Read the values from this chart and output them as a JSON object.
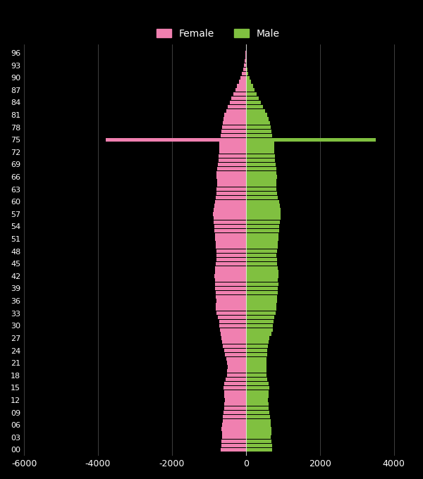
{
  "ages": [
    0,
    1,
    2,
    3,
    4,
    5,
    6,
    7,
    8,
    9,
    10,
    11,
    12,
    13,
    14,
    15,
    16,
    17,
    18,
    19,
    20,
    21,
    22,
    23,
    24,
    25,
    26,
    27,
    28,
    29,
    30,
    31,
    32,
    33,
    34,
    35,
    36,
    37,
    38,
    39,
    40,
    41,
    42,
    43,
    44,
    45,
    46,
    47,
    48,
    49,
    50,
    51,
    52,
    53,
    54,
    55,
    56,
    57,
    58,
    59,
    60,
    61,
    62,
    63,
    64,
    65,
    66,
    67,
    68,
    69,
    70,
    71,
    72,
    73,
    74,
    75,
    76,
    77,
    78,
    79,
    80,
    81,
    82,
    83,
    84,
    85,
    86,
    87,
    88,
    89,
    90,
    91,
    92,
    93,
    94,
    95,
    96
  ],
  "female": [
    680,
    670,
    660,
    640,
    650,
    660,
    640,
    630,
    620,
    600,
    590,
    580,
    570,
    580,
    590,
    610,
    580,
    550,
    520,
    510,
    500,
    520,
    540,
    570,
    580,
    620,
    640,
    660,
    680,
    710,
    720,
    730,
    760,
    800,
    810,
    820,
    800,
    810,
    820,
    830,
    840,
    830,
    850,
    840,
    830,
    810,
    800,
    790,
    800,
    810,
    820,
    830,
    840,
    850,
    860,
    870,
    880,
    900,
    880,
    860,
    840,
    820,
    800,
    790,
    780,
    780,
    800,
    790,
    780,
    760,
    750,
    740,
    730,
    720,
    720,
    3800,
    680,
    660,
    650,
    630,
    600,
    580,
    540,
    490,
    440,
    390,
    340,
    290,
    240,
    190,
    150,
    110,
    80,
    60,
    40,
    25,
    15
  ],
  "male": [
    710,
    700,
    690,
    670,
    680,
    690,
    670,
    660,
    650,
    630,
    620,
    610,
    600,
    610,
    620,
    640,
    610,
    580,
    560,
    560,
    560,
    560,
    560,
    570,
    580,
    600,
    620,
    640,
    680,
    720,
    730,
    740,
    760,
    810,
    820,
    830,
    840,
    840,
    850,
    860,
    870,
    860,
    880,
    870,
    860,
    840,
    840,
    830,
    840,
    850,
    860,
    870,
    880,
    890,
    900,
    910,
    930,
    940,
    940,
    920,
    890,
    860,
    840,
    830,
    820,
    820,
    840,
    830,
    820,
    800,
    790,
    780,
    770,
    760,
    760,
    3500,
    700,
    680,
    670,
    650,
    610,
    570,
    520,
    460,
    400,
    340,
    290,
    240,
    190,
    140,
    100,
    65,
    45,
    30,
    18,
    10,
    5
  ],
  "female_color": "#f080b0",
  "male_color": "#80c040",
  "background_color": "#000000",
  "text_color": "#ffffff",
  "grid_color": "#ffffff",
  "xlim": [
    -6000,
    4500
  ],
  "xticks": [
    -6000,
    -4000,
    -2000,
    0,
    2000,
    4000
  ],
  "xtick_labels": [
    "-6000",
    "-4000",
    "-2000",
    "0",
    "2000",
    "4000"
  ],
  "ytick_positions": [
    0,
    3,
    6,
    9,
    12,
    15,
    18,
    21,
    24,
    27,
    30,
    33,
    36,
    39,
    42,
    45,
    48,
    51,
    54,
    57,
    60,
    63,
    66,
    69,
    72,
    75,
    78,
    81,
    84,
    87,
    90,
    93,
    96
  ],
  "ytick_labels": [
    "00",
    "03",
    "06",
    "09",
    "12",
    "15",
    "18",
    "21",
    "24",
    "27",
    "30",
    "33",
    "36",
    "39",
    "42",
    "45",
    "48",
    "51",
    "54",
    "57",
    "60",
    "63",
    "66",
    "69",
    "72",
    "75",
    "78",
    "81",
    "84",
    "87",
    "90",
    "93",
    "96"
  ],
  "bar_height": 0.9,
  "legend_female": "Female",
  "legend_male": "Male"
}
